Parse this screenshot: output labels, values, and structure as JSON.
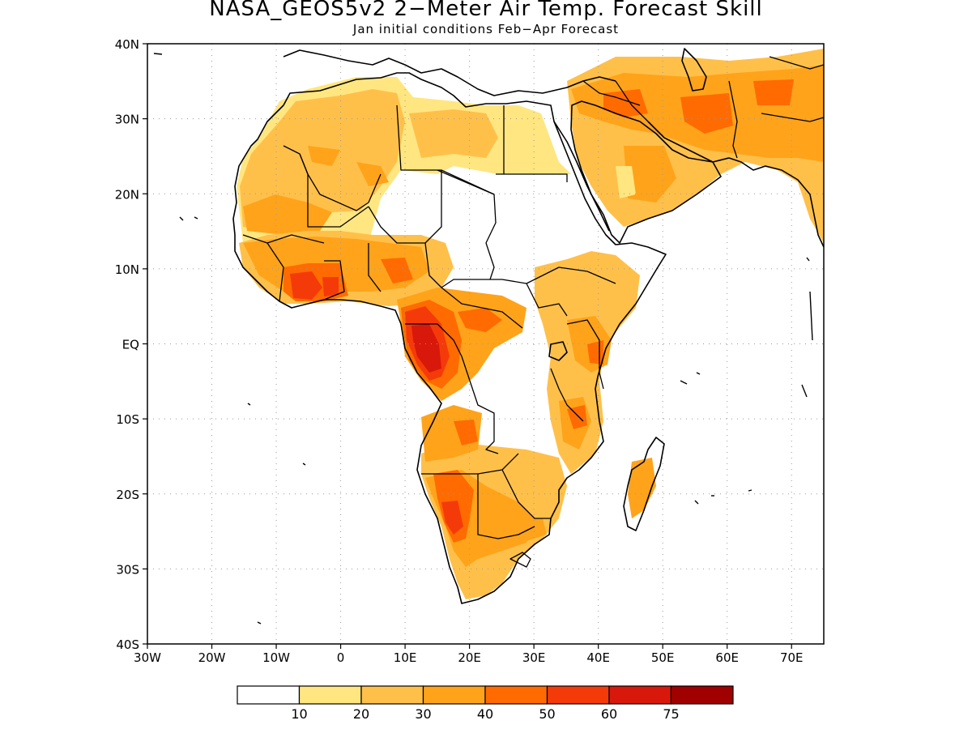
{
  "title": "NASA_GEOS5v2 2−Meter Air Temp. Forecast Skill",
  "subtitle": "Jan initial conditions  Feb−Apr Forecast",
  "map": {
    "lon_range": [
      -30,
      75
    ],
    "lat_range": [
      -40,
      40
    ],
    "x_ticks": [
      {
        "value": -30,
        "label": "30W"
      },
      {
        "value": -20,
        "label": "20W"
      },
      {
        "value": -10,
        "label": "10W"
      },
      {
        "value": 0,
        "label": "0"
      },
      {
        "value": 10,
        "label": "10E"
      },
      {
        "value": 20,
        "label": "20E"
      },
      {
        "value": 30,
        "label": "30E"
      },
      {
        "value": 40,
        "label": "40E"
      },
      {
        "value": 50,
        "label": "50E"
      },
      {
        "value": 60,
        "label": "60E"
      },
      {
        "value": 70,
        "label": "70E"
      }
    ],
    "y_ticks": [
      {
        "value": 40,
        "label": "40N"
      },
      {
        "value": 30,
        "label": "30N"
      },
      {
        "value": 20,
        "label": "20N"
      },
      {
        "value": 10,
        "label": "10N"
      },
      {
        "value": 0,
        "label": "EQ"
      },
      {
        "value": -10,
        "label": "10S"
      },
      {
        "value": -20,
        "label": "20S"
      },
      {
        "value": -30,
        "label": "30S"
      },
      {
        "value": -40,
        "label": "40S"
      }
    ],
    "grid": "dotted",
    "colors": {
      "bin_10_20": "#ffe680",
      "bin_20_30": "#ffc04a",
      "bin_30_40": "#ffa31a",
      "bin_40_50": "#ff6b00",
      "bin_50_60": "#f53a0a",
      "bin_60_75": "#d8180a",
      "bin_75_up": "#a00000",
      "land_outline": "#000000"
    }
  },
  "colorbar": {
    "labels": [
      "10",
      "20",
      "30",
      "40",
      "50",
      "60",
      "75"
    ],
    "colors": [
      "#ffffff",
      "#ffe680",
      "#ffc04a",
      "#ffa31a",
      "#ff6b00",
      "#f53a0a",
      "#d8180a",
      "#a00000"
    ]
  }
}
